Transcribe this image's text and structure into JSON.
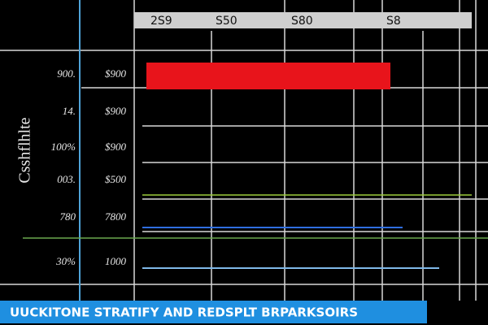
{
  "header": {
    "cells": [
      "2S9",
      "S50",
      "S80",
      "S8"
    ]
  },
  "side_label": "Csshflhlte",
  "rows": [
    [
      "900.",
      "$900"
    ],
    [
      "14.",
      "$900"
    ],
    [
      "100%",
      "$900"
    ],
    [
      "003.",
      "$500"
    ],
    [
      "780",
      "7800"
    ],
    [
      "30%",
      "1000"
    ]
  ],
  "footer": {
    "title": "UUCKITONE STRATIFY AND REDSPLT BRPARKSOIRS"
  }
}
